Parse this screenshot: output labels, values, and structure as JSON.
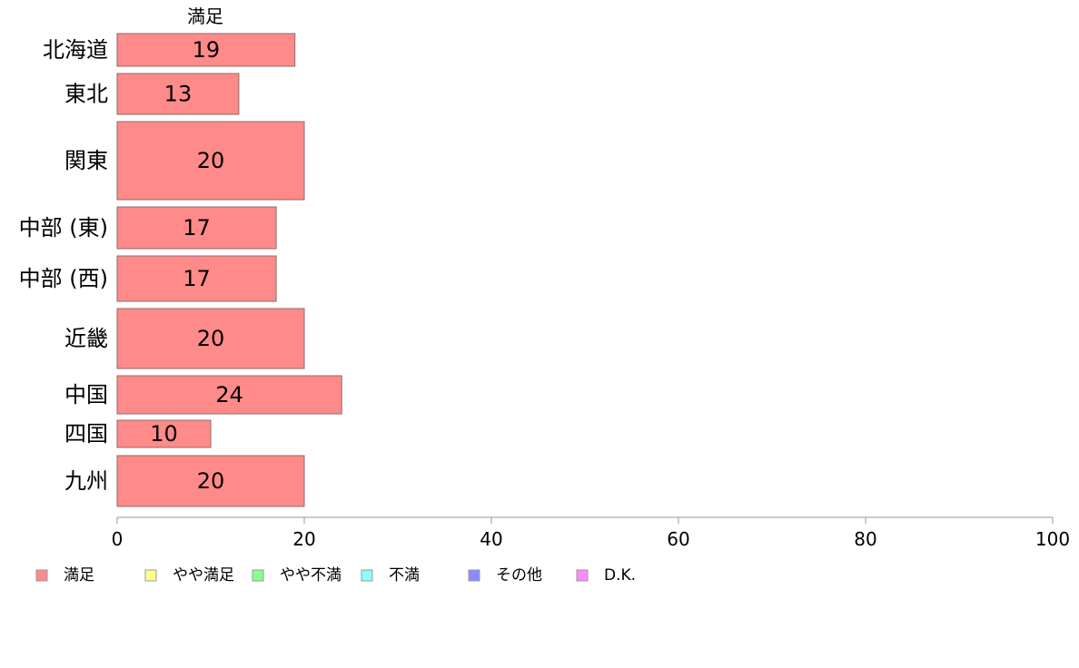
{
  "chart_data": {
    "type": "bar",
    "orientation": "horizontal",
    "column_header": "満足",
    "categories": [
      "北海道",
      "東北",
      "関東",
      "中部 (東)",
      "中部 (西)",
      "近畿",
      "中国",
      "四国",
      "九州"
    ],
    "series": [
      {
        "name": "満足",
        "values": [
          19,
          13,
          20,
          17,
          17,
          20,
          24,
          10,
          20
        ],
        "color": "#ff8a8a"
      }
    ],
    "data_labels": [
      "19",
      "13",
      "20",
      "17",
      "17",
      "20",
      "24",
      "10",
      "20"
    ],
    "xlim": [
      0,
      100
    ],
    "xticks": [
      0,
      20,
      40,
      60,
      80,
      100
    ],
    "grid": false,
    "legend_position": "bottom",
    "legend": [
      {
        "label": "満足",
        "color": "#ff8a8a"
      },
      {
        "label": "やや満足",
        "color": "#ffff8a"
      },
      {
        "label": "やや不満",
        "color": "#8aff8a"
      },
      {
        "label": "不満",
        "color": "#8affff"
      },
      {
        "label": "その他",
        "color": "#8a8aff"
      },
      {
        "label": "D.K.",
        "color": "#ff8aff"
      }
    ]
  }
}
